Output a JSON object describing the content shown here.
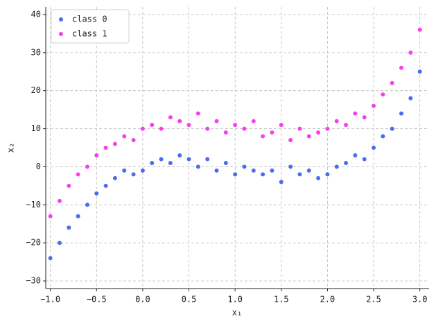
{
  "chart_data": {
    "type": "scatter",
    "xlabel": "x₁",
    "ylabel": "x₂",
    "xlim": [
      -1.05,
      3.1
    ],
    "ylim": [
      -32,
      42
    ],
    "xticks": [
      {
        "value": -1,
        "label": "−1.0"
      },
      {
        "value": -0.5,
        "label": "−0.5"
      },
      {
        "value": 0,
        "label": "0.0"
      },
      {
        "value": 0.5,
        "label": "0.5"
      },
      {
        "value": 1,
        "label": "1.0"
      },
      {
        "value": 1.5,
        "label": "1.5"
      },
      {
        "value": 2,
        "label": "2.0"
      },
      {
        "value": 2.5,
        "label": "2.5"
      },
      {
        "value": 3,
        "label": "3.0"
      }
    ],
    "yticks": [
      {
        "value": -30,
        "label": "−30"
      },
      {
        "value": -20,
        "label": "−20"
      },
      {
        "value": -10,
        "label": "−10"
      },
      0,
      10,
      20,
      30,
      40
    ],
    "grid": true,
    "legend": "upper left",
    "series": [
      {
        "name": "class 0",
        "color": "#4a6cf0",
        "x": [
          -1.0,
          -0.9,
          -0.8,
          -0.7,
          -0.6,
          -0.5,
          -0.4,
          -0.3,
          -0.2,
          -0.1,
          0.0,
          0.1,
          0.2,
          0.3,
          0.4,
          0.5,
          0.6,
          0.7,
          0.8,
          0.9,
          1.0,
          1.1,
          1.2,
          1.3,
          1.4,
          1.5,
          1.6,
          1.7,
          1.8,
          1.9,
          2.0,
          2.1,
          2.2,
          2.3,
          2.4,
          2.5,
          2.6,
          2.7,
          2.8,
          2.9,
          3.0
        ],
        "values": [
          -24,
          -20,
          -16,
          -13,
          -10,
          -7,
          -5,
          -3,
          -1,
          -2,
          -1,
          1,
          2,
          1,
          3,
          2,
          0,
          2,
          -1,
          1,
          -2,
          0,
          -1,
          -2,
          -1,
          -4,
          0,
          -2,
          -1,
          -3,
          -2,
          0,
          1,
          3,
          2,
          5,
          8,
          10,
          14,
          18,
          25
        ]
      },
      {
        "name": "class 1",
        "color": "#f53ff0",
        "x": [
          -1.0,
          -0.9,
          -0.8,
          -0.7,
          -0.6,
          -0.5,
          -0.4,
          -0.3,
          -0.2,
          -0.1,
          0.0,
          0.1,
          0.2,
          0.3,
          0.4,
          0.5,
          0.6,
          0.7,
          0.8,
          0.9,
          1.0,
          1.1,
          1.2,
          1.3,
          1.4,
          1.5,
          1.6,
          1.7,
          1.8,
          1.9,
          2.0,
          2.1,
          2.2,
          2.3,
          2.4,
          2.5,
          2.6,
          2.7,
          2.8,
          2.9,
          3.0
        ],
        "values": [
          -13,
          -9,
          -5,
          -2,
          0,
          3,
          5,
          6,
          8,
          7,
          10,
          11,
          10,
          13,
          12,
          11,
          14,
          10,
          12,
          9,
          11,
          10,
          12,
          8,
          9,
          11,
          7,
          10,
          8,
          9,
          10,
          12,
          11,
          14,
          13,
          16,
          19,
          22,
          26,
          30,
          36
        ]
      }
    ]
  }
}
